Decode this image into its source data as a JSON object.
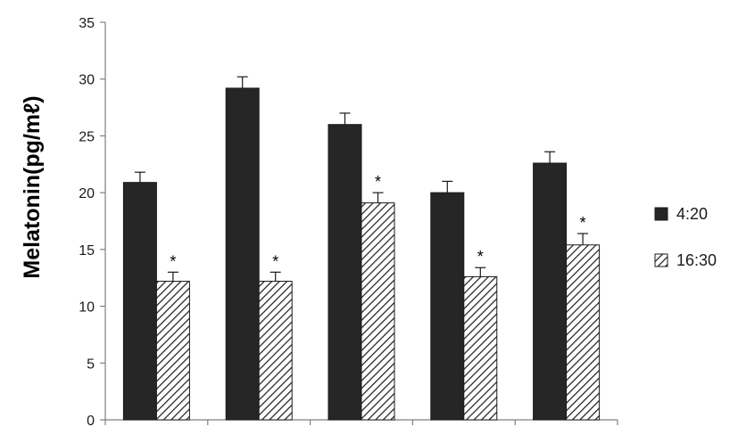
{
  "chart_data": {
    "type": "bar",
    "categories": [
      "",
      "",
      "",
      "",
      ""
    ],
    "ylabel": "Melatonin(pg/mℓ)",
    "ylim": [
      0,
      35
    ],
    "yticks": [
      0,
      5,
      10,
      15,
      20,
      25,
      30,
      35
    ],
    "grid": false,
    "legend_position": "right",
    "series": [
      {
        "name": "4:20",
        "values": [
          20.9,
          29.2,
          26.0,
          20.0,
          22.6
        ],
        "errors": [
          0.9,
          1.0,
          1.0,
          1.0,
          1.0
        ],
        "annotations": [
          "",
          "",
          "",
          "",
          ""
        ],
        "fill": "#262626",
        "pattern": "solid"
      },
      {
        "name": "16:30",
        "values": [
          12.2,
          12.2,
          19.1,
          12.6,
          15.4
        ],
        "errors": [
          0.8,
          0.8,
          0.9,
          0.8,
          1.0
        ],
        "annotations": [
          "*",
          "*",
          "*",
          "*",
          "*"
        ],
        "fill": "#ffffff",
        "pattern": "diagonal-hatch"
      }
    ]
  }
}
